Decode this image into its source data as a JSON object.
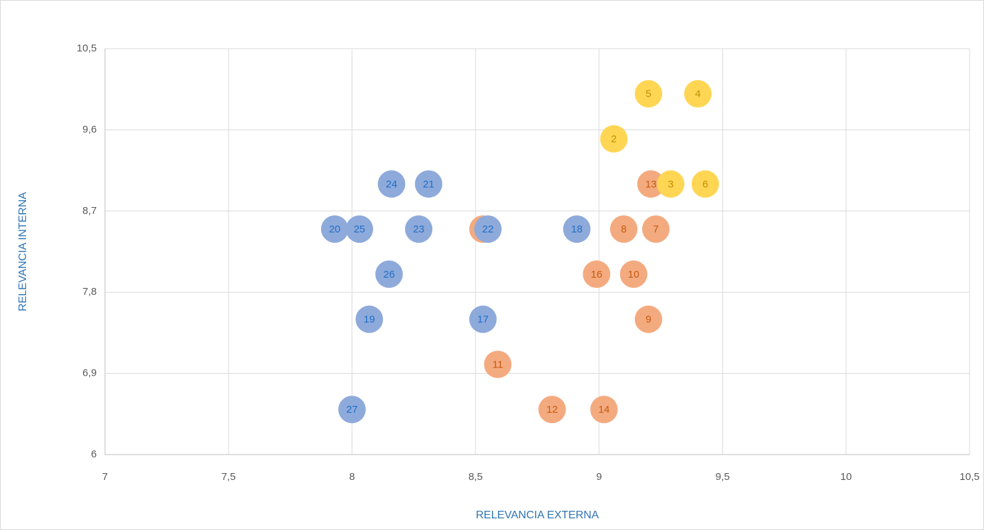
{
  "chart_data": {
    "type": "scatter",
    "xlabel": "RELEVANCIA EXTERNA",
    "ylabel": "RELEVANCIA INTERNA",
    "xlim": [
      7,
      10.5
    ],
    "xticks": [
      7,
      {
        "value": 7.5,
        "label": "7,5"
      },
      8,
      {
        "value": 8.5,
        "label": "8,5"
      },
      9,
      {
        "value": 9.5,
        "label": "9,5"
      },
      10,
      {
        "value": 10.5,
        "label": "10,5"
      }
    ],
    "ylim": [
      6,
      10.5
    ],
    "yticks": [
      6,
      {
        "value": 6.9,
        "label": "6,9"
      },
      {
        "value": 7.8,
        "label": "7,8"
      },
      {
        "value": 8.7,
        "label": "8,7"
      },
      {
        "value": 9.6,
        "label": "9,6"
      },
      {
        "value": 10.5,
        "label": "10,5"
      }
    ],
    "grid": true,
    "series": [
      {
        "color": "#f4aa7f",
        "label_color": "#c55a11",
        "x": [
          9.21,
          9.1,
          9.23,
          8.99,
          9.14,
          9.2,
          8.59,
          8.81,
          9.02,
          8.53
        ],
        "y": [
          9.0,
          8.5,
          8.5,
          8.0,
          8.0,
          7.5,
          7.0,
          6.5,
          6.5,
          8.5
        ],
        "labels": [
          "13",
          "8",
          "7",
          "16",
          "10",
          "9",
          "11",
          "12",
          "14",
          "15"
        ]
      },
      {
        "color": "#8eaadb",
        "label_color": "#1f6fc5",
        "x": [
          8.16,
          8.31,
          7.93,
          8.03,
          8.27,
          8.55,
          8.91,
          8.15,
          8.07,
          8.53,
          8.0
        ],
        "y": [
          9.0,
          9.0,
          8.5,
          8.5,
          8.5,
          8.5,
          8.5,
          8.0,
          7.5,
          7.5,
          6.5
        ],
        "labels": [
          "24",
          "21",
          "20",
          "25",
          "23",
          "22",
          "18",
          "26",
          "19",
          "17",
          "27"
        ]
      },
      {
        "color": "#ffd654",
        "label_color": "#bf8f00",
        "x": [
          9.2,
          9.4,
          9.06,
          9.29,
          9.43
        ],
        "y": [
          10.0,
          10.0,
          9.5,
          9.0,
          9.0
        ],
        "labels": [
          "5",
          "4",
          "2",
          "3",
          "6"
        ]
      }
    ]
  }
}
